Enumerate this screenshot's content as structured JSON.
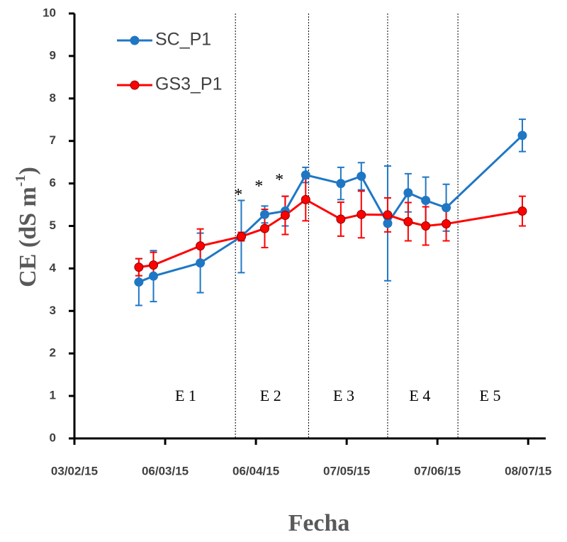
{
  "chart_data": {
    "type": "line",
    "xlabel": "Fecha",
    "ylabel": "CE (dS m",
    "ylabel_sup": "-1",
    "ylabel_end": ")",
    "x": [
      "25/02/15",
      "02/03/15",
      "18/03/15",
      "01/04/15",
      "09/04/15",
      "16/04/15",
      "23/04/15",
      "05/05/15",
      "12/05/15",
      "21/05/15",
      "28/05/15",
      "03/06/15",
      "10/06/15",
      "06/07/15"
    ],
    "series": [
      {
        "name": "SC_P1",
        "color": "#1f77c4",
        "values": [
          3.68,
          3.82,
          4.13,
          4.75,
          5.27,
          5.35,
          6.2,
          6.0,
          6.17,
          5.06,
          5.78,
          5.6,
          5.43,
          7.13
        ],
        "errors": [
          0.55,
          0.6,
          0.7,
          0.85,
          0.2,
          0.35,
          0.18,
          0.38,
          0.32,
          1.35,
          0.45,
          0.55,
          0.55,
          0.38
        ]
      },
      {
        "name": "GS3_P1",
        "color": "#ff0000",
        "values": [
          4.03,
          4.08,
          4.53,
          4.75,
          4.94,
          5.25,
          5.62,
          5.16,
          5.27,
          5.26,
          5.1,
          5.0,
          5.05,
          5.35
        ],
        "errors": [
          0.2,
          0.3,
          0.4,
          0.1,
          0.45,
          0.45,
          0.5,
          0.4,
          0.55,
          0.4,
          0.45,
          0.45,
          0.4,
          0.35
        ]
      }
    ],
    "xlim": [
      "03/02/15",
      "14/07/15"
    ],
    "xticks": [
      "03/02/15",
      "06/03/15",
      "06/04/15",
      "07/05/15",
      "07/06/15",
      "08/07/15"
    ],
    "ylim": [
      0,
      10
    ],
    "yticks": [
      0,
      1,
      2,
      3,
      4,
      5,
      6,
      7,
      8,
      9,
      10
    ],
    "period_boundaries": [
      "30/03/15",
      "24/04/15",
      "21/05/15",
      "14/06/15"
    ],
    "periods": [
      {
        "label": "E 1",
        "x": "13/03/15"
      },
      {
        "label": "E 2",
        "x": "11/04/15"
      },
      {
        "label": "E 3",
        "x": "06/05/15"
      },
      {
        "label": "E 4",
        "x": "01/06/15"
      },
      {
        "label": "E 5",
        "x": "25/06/15"
      }
    ],
    "annotations": [
      {
        "text": "*",
        "x": "31/03/15",
        "y": 5.8
      },
      {
        "text": "*",
        "x": "07/04/15",
        "y": 6.0
      },
      {
        "text": "*",
        "x": "14/04/15",
        "y": 6.15
      }
    ],
    "legend": "upper left"
  }
}
